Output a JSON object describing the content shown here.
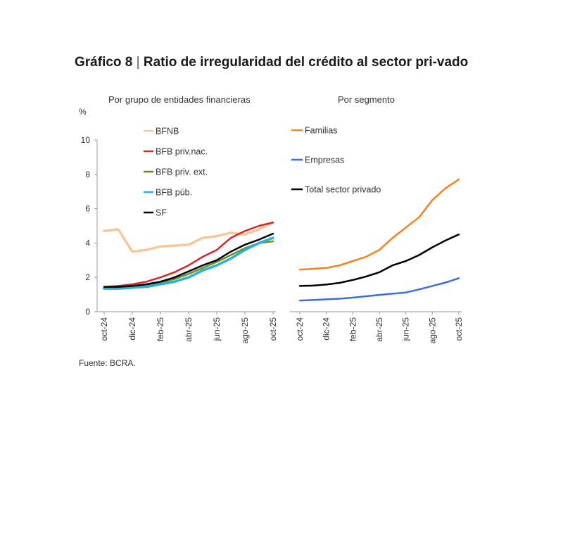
{
  "title": {
    "number": "Gráfico 8",
    "separator": "|",
    "text": "Ratio de irregularidad del crédito al sector pri-vado"
  },
  "unit_label": "%",
  "source": "Fuente: BCRA.",
  "chart_data": [
    {
      "type": "line",
      "title": "Por grupo de entidades financieras",
      "ylabel": "%",
      "ylim": [
        0,
        10
      ],
      "yticks": [
        0,
        2,
        4,
        6,
        8,
        10
      ],
      "x_tick_labels": [
        "oct-24",
        "dic-24",
        "feb-25",
        "abr-25",
        "jun-25",
        "ago-25",
        "oct-25"
      ],
      "x_tick_index": [
        0,
        2,
        4,
        6,
        8,
        10,
        12
      ],
      "x_count": 13,
      "legend": "top-left",
      "series": [
        {
          "name": "BFNB",
          "color": "#f6c898",
          "width": 3.5,
          "values": [
            4.7,
            4.8,
            3.5,
            3.6,
            3.8,
            3.85,
            3.9,
            4.3,
            4.4,
            4.6,
            4.5,
            4.8,
            5.2
          ]
        },
        {
          "name": "BFB priv.nac.",
          "color": "#d62728",
          "width": 2.5,
          "values": [
            1.45,
            1.5,
            1.6,
            1.75,
            2.0,
            2.3,
            2.7,
            3.2,
            3.6,
            4.3,
            4.7,
            5.0,
            5.2
          ]
        },
        {
          "name": "BFB priv. ext.",
          "color": "#6b8e23",
          "width": 2.5,
          "values": [
            1.4,
            1.4,
            1.45,
            1.55,
            1.7,
            1.9,
            2.2,
            2.55,
            2.9,
            3.3,
            3.7,
            4.0,
            4.1
          ]
        },
        {
          "name": "BFB púb.",
          "color": "#2bb0d8",
          "width": 3.5,
          "values": [
            1.35,
            1.35,
            1.4,
            1.45,
            1.6,
            1.75,
            2.0,
            2.4,
            2.7,
            3.1,
            3.6,
            4.0,
            4.3
          ]
        },
        {
          "name": "SF",
          "color": "#000000",
          "width": 2.5,
          "values": [
            1.45,
            1.45,
            1.5,
            1.6,
            1.75,
            2.0,
            2.35,
            2.7,
            3.0,
            3.5,
            3.9,
            4.2,
            4.55
          ]
        }
      ]
    },
    {
      "type": "line",
      "title": "Por segmento",
      "ylim": [
        0,
        10
      ],
      "x_tick_labels": [
        "oct-24",
        "dic-24",
        "feb-25",
        "abr-25",
        "jun-25",
        "ago-25",
        "oct-25"
      ],
      "x_tick_index": [
        0,
        2,
        4,
        6,
        8,
        10,
        12
      ],
      "x_count": 13,
      "legend": "top-left",
      "series": [
        {
          "name": "Familias",
          "color": "#f58220",
          "width": 2.5,
          "values": [
            2.45,
            2.5,
            2.55,
            2.7,
            2.95,
            3.2,
            3.6,
            4.3,
            4.9,
            5.5,
            6.5,
            7.2,
            7.7
          ]
        },
        {
          "name": "Empresas",
          "color": "#3a6fd8",
          "width": 2.5,
          "values": [
            0.65,
            0.68,
            0.72,
            0.76,
            0.82,
            0.9,
            0.98,
            1.05,
            1.12,
            1.3,
            1.5,
            1.7,
            1.95
          ]
        },
        {
          "name": "Total sector privado",
          "color": "#000000",
          "width": 2.5,
          "values": [
            1.5,
            1.52,
            1.58,
            1.68,
            1.85,
            2.05,
            2.3,
            2.7,
            2.95,
            3.3,
            3.75,
            4.15,
            4.5
          ]
        }
      ]
    }
  ]
}
